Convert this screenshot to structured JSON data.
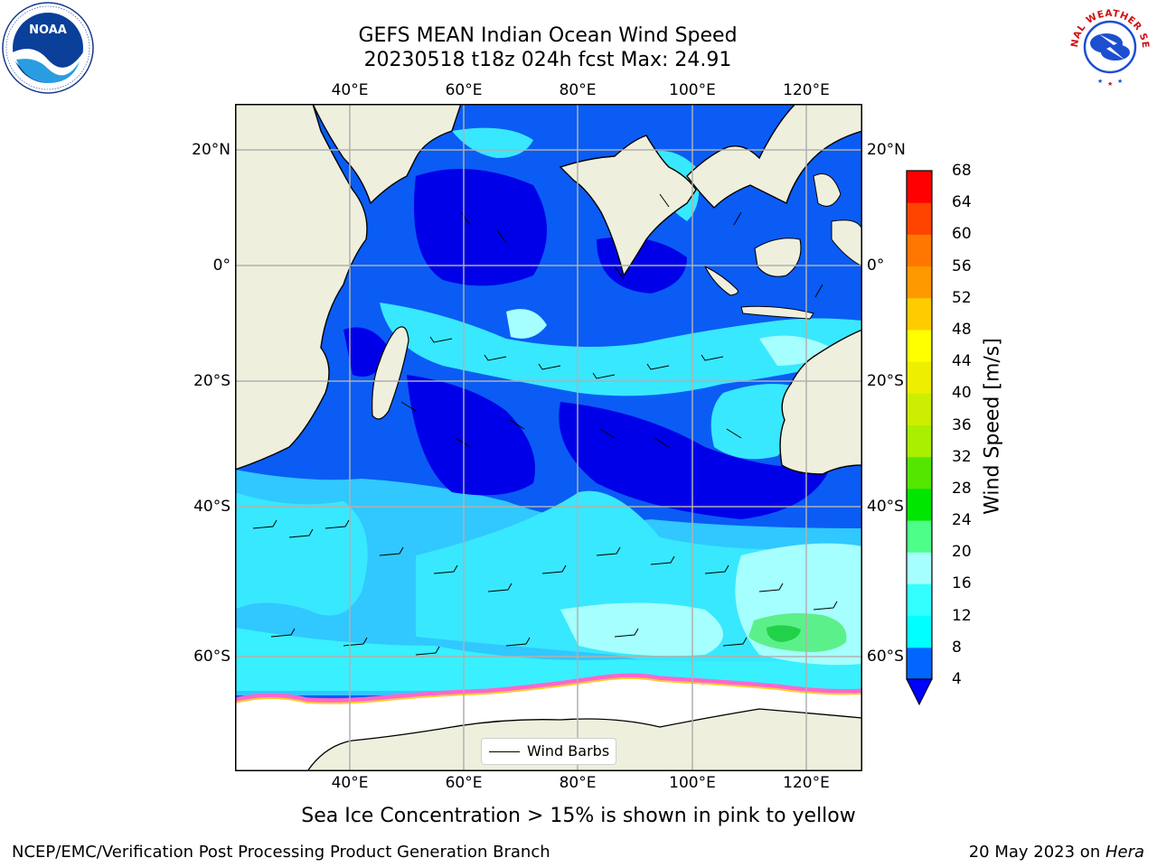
{
  "title": {
    "line1": "GEFS MEAN Indian Ocean Wind Speed",
    "line2": "20230518 t18z 024h fcst   Max: 24.91"
  },
  "map": {
    "lon_ticks": [
      "40°E",
      "60°E",
      "80°E",
      "100°E",
      "120°E"
    ],
    "lat_ticks": [
      "20°N",
      "0°",
      "20°S",
      "40°S",
      "60°S"
    ],
    "grid": true,
    "colors": {
      "land": "#efefdd",
      "sea_ice": "#ffffff",
      "sea_ice_edge": [
        "#ff66cc",
        "#ffcc33"
      ],
      "grid": "#b0b0b0"
    }
  },
  "colorbar": {
    "label": "Wind Speed [m/s]",
    "ticks": [
      "4",
      "8",
      "12",
      "16",
      "20",
      "24",
      "28",
      "32",
      "36",
      "40",
      "44",
      "48",
      "52",
      "56",
      "60",
      "64",
      "68"
    ],
    "colors": [
      "#0066ff",
      "#00ffff",
      "#33ffff",
      "#a6ffff",
      "#4dff88",
      "#00e600",
      "#55e600",
      "#aaee00",
      "#ccee00",
      "#eeee00",
      "#ffff00",
      "#ffcc00",
      "#ff9900",
      "#ff7700",
      "#ff4400",
      "#ff0000"
    ],
    "under_color": "#0000ff"
  },
  "legend": {
    "label": "Wind Barbs"
  },
  "note": "Sea Ice Concentration > 15% is shown in pink to yellow",
  "footer": {
    "left": "NCEP/EMC/Verification Post Processing Product Generation Branch",
    "date": "20 May 2023 on ",
    "host": "Hera"
  },
  "logos": {
    "left": "NOAA",
    "right": "NATIONAL WEATHER SERVICE"
  }
}
